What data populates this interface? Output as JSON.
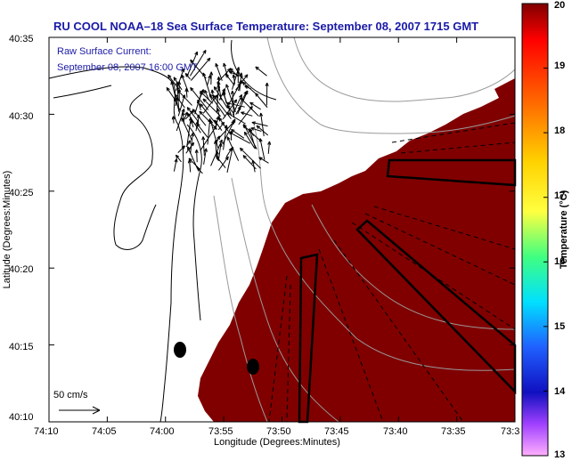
{
  "title": "RU COOL  NOAA–18  Sea Surface Temperature:  September 08, 2007 1715 GMT",
  "current_label_1": "Raw Surface Current:",
  "current_label_2": "September 08, 2007 16:00 GMT",
  "scale_label": "50 cm/s",
  "axes": {
    "xlabel": "Longitude (Degrees:Minutes)",
    "ylabel": "Latitude (Degrees:Minutes)",
    "xticks": [
      "74:10",
      "74:05",
      "74:00",
      "73:55",
      "73:50",
      "73:45",
      "73:40",
      "73:35",
      "73:3"
    ],
    "yticks": [
      "40:35",
      "40:30",
      "40:25",
      "40:20",
      "40:15",
      "40:10"
    ]
  },
  "colorbar": {
    "label": "Temperature (°C)",
    "ticks": [
      "20",
      "19",
      "18",
      "17",
      "16",
      "15",
      "14",
      "13"
    ],
    "min": 13,
    "max": 20
  },
  "colors": {
    "sst_fill": "#800000",
    "title_text": "#1a1aa8",
    "land": "#ffffff"
  },
  "icons": {
    "current_vectors": "arrow-icon",
    "buoys": "ellipse-marker"
  }
}
